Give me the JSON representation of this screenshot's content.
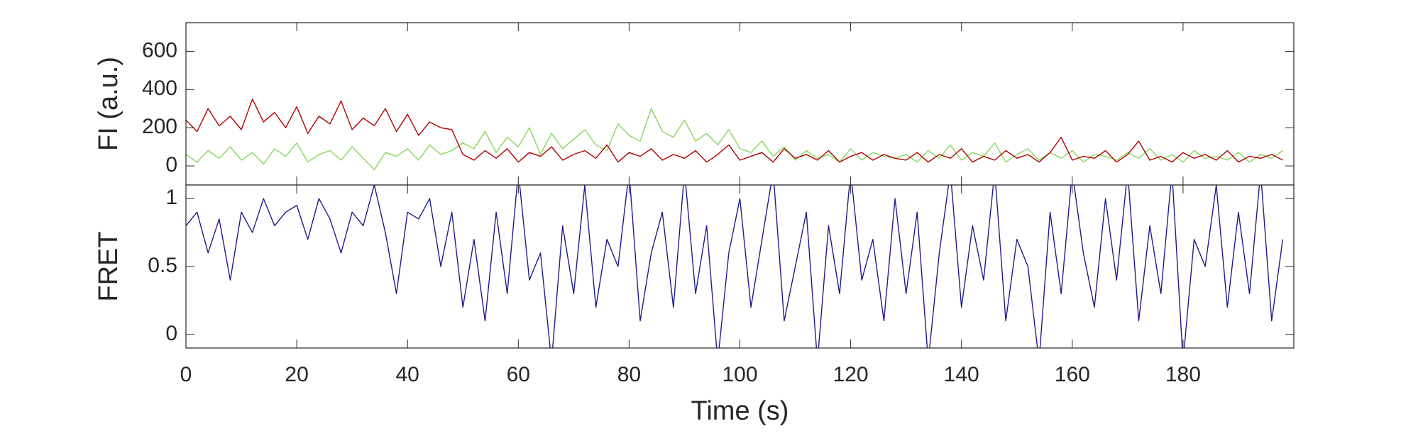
{
  "chart_data": [
    {
      "type": "line",
      "ylabel": "FI (a.u.)",
      "xlim": [
        0,
        200
      ],
      "ylim": [
        -100,
        750
      ],
      "yticks": [
        0,
        200,
        400,
        600
      ],
      "x": [
        0,
        2,
        4,
        6,
        8,
        10,
        12,
        14,
        16,
        18,
        20,
        22,
        24,
        26,
        28,
        30,
        32,
        34,
        36,
        38,
        40,
        42,
        44,
        46,
        48,
        50,
        52,
        54,
        56,
        58,
        60,
        62,
        64,
        66,
        68,
        70,
        72,
        74,
        76,
        78,
        80,
        82,
        84,
        86,
        88,
        90,
        92,
        94,
        96,
        98,
        100,
        102,
        104,
        106,
        108,
        110,
        112,
        114,
        116,
        118,
        120,
        122,
        124,
        126,
        128,
        130,
        132,
        134,
        136,
        138,
        140,
        142,
        144,
        146,
        148,
        150,
        152,
        154,
        156,
        158,
        160,
        162,
        164,
        166,
        168,
        170,
        172,
        174,
        176,
        178,
        180,
        182,
        184,
        186,
        188,
        190,
        192,
        194,
        196,
        198
      ],
      "series": [
        {
          "color": "#86d65c",
          "values": [
            60,
            20,
            80,
            40,
            100,
            30,
            70,
            10,
            90,
            50,
            120,
            20,
            60,
            80,
            30,
            100,
            40,
            -20,
            70,
            50,
            90,
            30,
            110,
            60,
            80,
            120,
            90,
            180,
            70,
            150,
            100,
            200,
            60,
            170,
            90,
            140,
            190,
            110,
            80,
            220,
            160,
            130,
            300,
            180,
            150,
            240,
            130,
            170,
            110,
            190,
            90,
            70,
            130,
            50,
            100,
            30,
            80,
            40,
            60,
            20,
            90,
            30,
            70,
            50,
            40,
            60,
            20,
            80,
            40,
            110,
            30,
            70,
            50,
            120,
            20,
            60,
            90,
            30,
            70,
            40,
            80,
            20,
            60,
            50,
            30,
            70,
            40,
            90,
            30,
            60,
            20,
            80,
            40,
            50,
            30,
            70,
            20,
            60,
            40,
            80
          ]
        },
        {
          "color": "#b00000",
          "values": [
            240,
            180,
            300,
            210,
            260,
            190,
            350,
            230,
            280,
            200,
            310,
            170,
            260,
            220,
            340,
            190,
            250,
            210,
            300,
            180,
            270,
            160,
            230,
            200,
            190,
            60,
            30,
            80,
            40,
            90,
            20,
            70,
            50,
            100,
            30,
            60,
            80,
            40,
            110,
            20,
            70,
            50,
            90,
            30,
            60,
            40,
            80,
            20,
            60,
            110,
            30,
            50,
            70,
            20,
            90,
            40,
            60,
            30,
            80,
            20,
            50,
            70,
            30,
            60,
            40,
            30,
            70,
            20,
            60,
            40,
            90,
            20,
            50,
            30,
            80,
            40,
            60,
            20,
            70,
            150,
            30,
            50,
            40,
            80,
            20,
            60,
            130,
            30,
            50,
            20,
            70,
            40,
            60,
            30,
            80,
            20,
            50,
            40,
            60,
            30
          ]
        }
      ]
    },
    {
      "type": "line",
      "ylabel": "FRET",
      "xlabel": "Time (s)",
      "xlim": [
        0,
        200
      ],
      "ylim": [
        -0.1,
        1.1
      ],
      "yticks": [
        0,
        0.5,
        1
      ],
      "xticks": [
        0,
        20,
        40,
        60,
        80,
        100,
        120,
        140,
        160,
        180
      ],
      "x": [
        0,
        2,
        4,
        6,
        8,
        10,
        12,
        14,
        16,
        18,
        20,
        22,
        24,
        26,
        28,
        30,
        32,
        34,
        36,
        38,
        40,
        42,
        44,
        46,
        48,
        50,
        52,
        54,
        56,
        58,
        60,
        62,
        64,
        66,
        68,
        70,
        72,
        74,
        76,
        78,
        80,
        82,
        84,
        86,
        88,
        90,
        92,
        94,
        96,
        98,
        100,
        102,
        104,
        106,
        108,
        110,
        112,
        114,
        116,
        118,
        120,
        122,
        124,
        126,
        128,
        130,
        132,
        134,
        136,
        138,
        140,
        142,
        144,
        146,
        148,
        150,
        152,
        154,
        156,
        158,
        160,
        162,
        164,
        166,
        168,
        170,
        172,
        174,
        176,
        178,
        180,
        182,
        184,
        186,
        188,
        190,
        192,
        194,
        196,
        198
      ],
      "series": [
        {
          "color": "#1c1c8e",
          "values": [
            0.8,
            0.9,
            0.6,
            0.85,
            0.4,
            0.9,
            0.75,
            1.0,
            0.8,
            0.9,
            0.95,
            0.7,
            1.0,
            0.85,
            0.6,
            0.9,
            0.8,
            1.1,
            0.75,
            0.3,
            0.9,
            0.85,
            1.0,
            0.5,
            0.9,
            0.2,
            0.7,
            0.1,
            0.9,
            0.3,
            1.2,
            0.4,
            0.6,
            -0.2,
            0.8,
            0.3,
            1.1,
            0.2,
            0.7,
            0.5,
            1.2,
            0.1,
            0.6,
            0.9,
            0.2,
            1.2,
            0.3,
            0.8,
            -0.2,
            0.6,
            1.0,
            0.2,
            0.7,
            1.2,
            0.1,
            0.5,
            0.9,
            -0.2,
            0.8,
            0.3,
            1.2,
            0.4,
            0.7,
            0.1,
            1.0,
            0.3,
            0.9,
            -0.2,
            0.6,
            1.2,
            0.2,
            0.8,
            0.4,
            1.2,
            0.1,
            0.7,
            0.5,
            -0.2,
            0.9,
            0.3,
            1.2,
            0.6,
            0.2,
            1.0,
            0.4,
            1.2,
            0.1,
            0.8,
            0.3,
            1.2,
            -0.2,
            0.7,
            0.5,
            1.1,
            0.2,
            0.9,
            0.3,
            1.2,
            0.1,
            0.7
          ]
        }
      ]
    }
  ]
}
